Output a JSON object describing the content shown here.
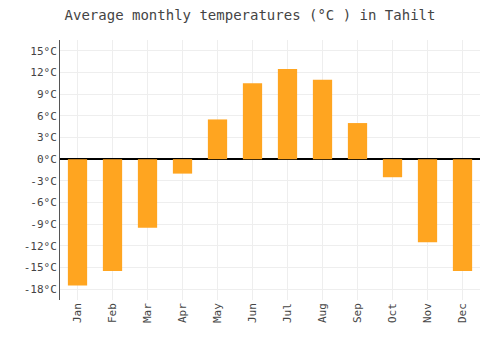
{
  "chart_data": {
    "type": "bar",
    "title": "Average monthly temperatures (°C ) in Tahilt",
    "categories": [
      "Jan",
      "Feb",
      "Mar",
      "Apr",
      "May",
      "Jun",
      "Jul",
      "Aug",
      "Sep",
      "Oct",
      "Nov",
      "Dec"
    ],
    "values": [
      -17.5,
      -15.5,
      -9.5,
      -2.0,
      5.5,
      10.5,
      12.5,
      11.0,
      5.0,
      -2.5,
      -11.5,
      -15.5
    ],
    "color": "#FFA520",
    "ylim": [
      -19.5,
      16.5
    ],
    "yticks": [
      {
        "value": -18,
        "label": "-18°C"
      },
      {
        "value": -15,
        "label": "-15°C"
      },
      {
        "value": -12,
        "label": "-12°C"
      },
      {
        "value": -9,
        "label": "-9°C"
      },
      {
        "value": -6,
        "label": "-6°C"
      },
      {
        "value": -3,
        "label": "-3°C"
      },
      {
        "value": 0,
        "label": "0°C"
      },
      {
        "value": 3,
        "label": "3°C"
      },
      {
        "value": 6,
        "label": "6°C"
      },
      {
        "value": 9,
        "label": "9°C"
      },
      {
        "value": 12,
        "label": "12°C"
      },
      {
        "value": 15,
        "label": "15°C"
      }
    ],
    "grid": true
  }
}
